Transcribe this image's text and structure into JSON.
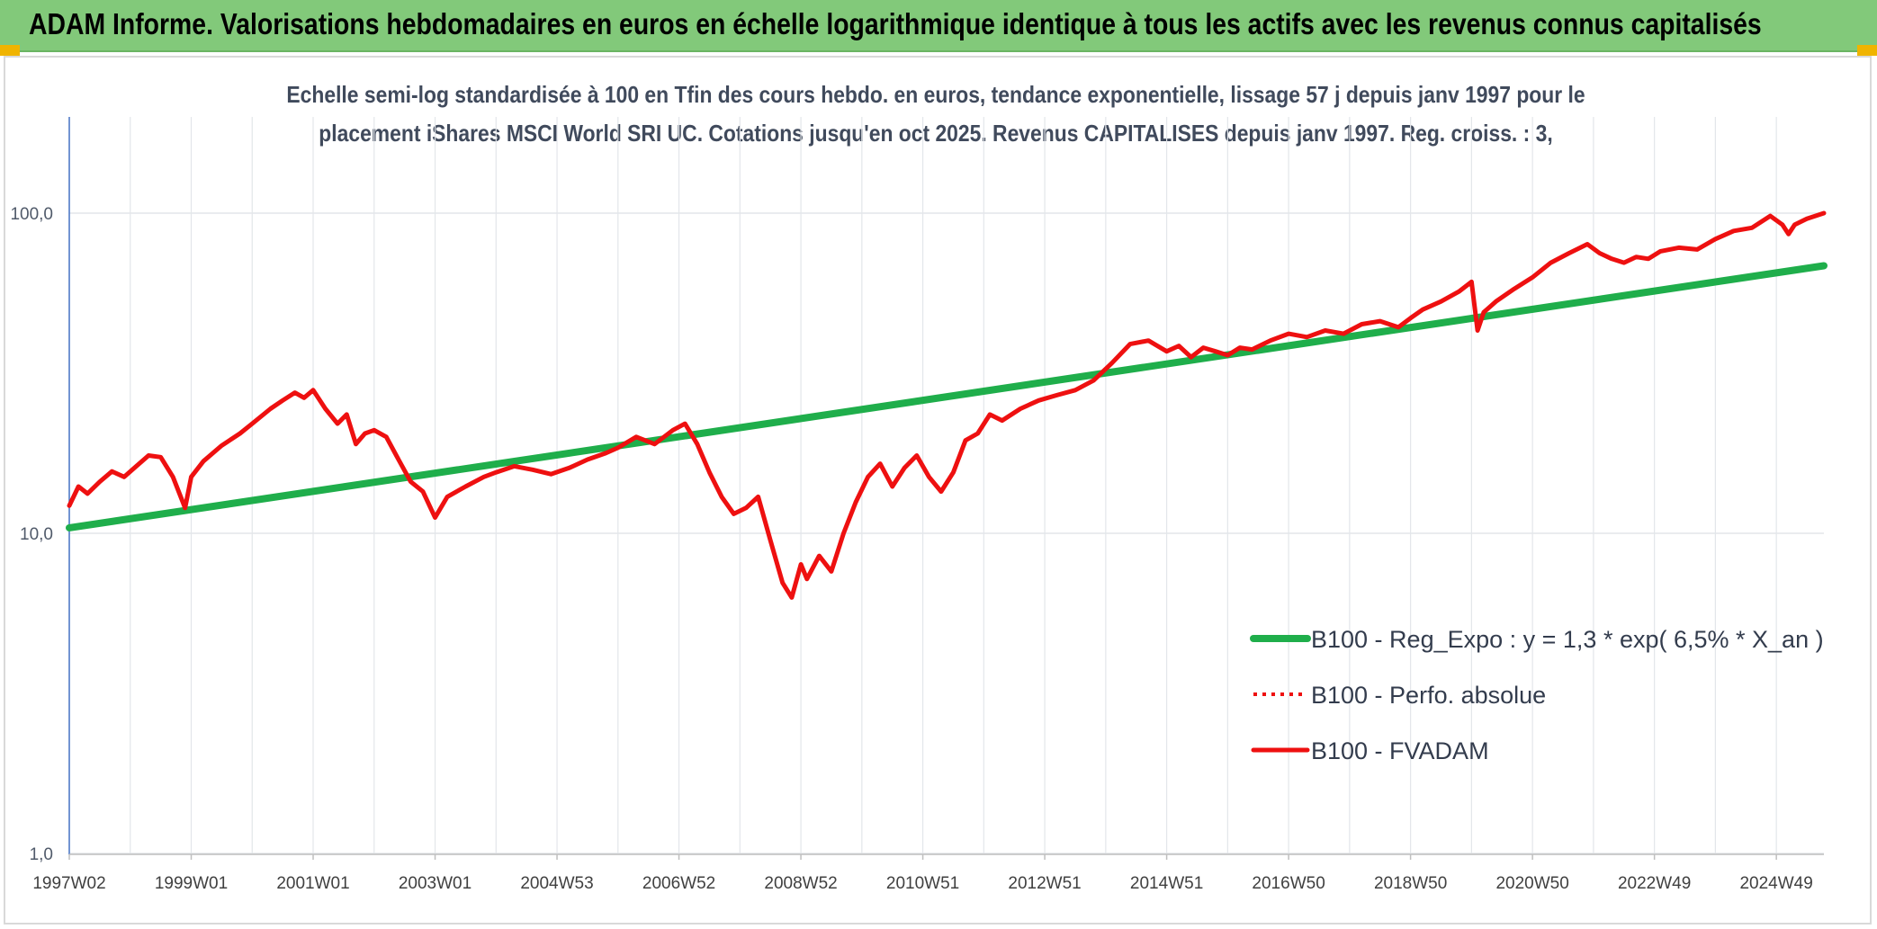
{
  "header": {
    "title": "ADAM Informe. Valorisations hebdomadaires en euros en échelle logarithmique identique à tous les actifs avec les revenus connus capitalisés"
  },
  "colors": {
    "banner": "#82c97a",
    "corner": "#f0b400",
    "trend": "#1fae4b",
    "price": "#ee1010",
    "grid": "#e3e6ea",
    "axis": "#4472c4"
  },
  "chart_data": {
    "type": "line",
    "subtitle_line1": "Echelle semi-log standardisée à 100 en Tfin des cours hebdo. en euros, tendance exponentielle, lissage 57 j depuis janv 1997 pour le",
    "subtitle_line2": "placement iShares MSCI World SRI UC. Cotations jusqu'en oct 2025. Revenus CAPITALISES depuis janv 1997. Reg. croiss. : 3,",
    "y_scale": "log",
    "ylim": [
      1,
      200
    ],
    "xlim": [
      1997.0,
      2025.78
    ],
    "y_ticks": [
      {
        "value": 100,
        "label": "100,0"
      },
      {
        "value": 10,
        "label": "10,0"
      },
      {
        "value": 1,
        "label": "1,0"
      }
    ],
    "x_ticks": [
      {
        "value": 1997.0,
        "label": "1997W02"
      },
      {
        "value": 1999.0,
        "label": "1999W01"
      },
      {
        "value": 2001.0,
        "label": "2001W01"
      },
      {
        "value": 2003.0,
        "label": "2003W01"
      },
      {
        "value": 2005.0,
        "label": "2004W53"
      },
      {
        "value": 2007.0,
        "label": "2006W52"
      },
      {
        "value": 2009.0,
        "label": "2008W52"
      },
      {
        "value": 2011.0,
        "label": "2010W51"
      },
      {
        "value": 2013.0,
        "label": "2012W51"
      },
      {
        "value": 2015.0,
        "label": "2014W51"
      },
      {
        "value": 2017.0,
        "label": "2016W50"
      },
      {
        "value": 2019.0,
        "label": "2018W50"
      },
      {
        "value": 2021.0,
        "label": "2020W50"
      },
      {
        "value": 2023.0,
        "label": "2022W49"
      },
      {
        "value": 2025.0,
        "label": "2024W49"
      }
    ],
    "grid": true,
    "legend_position": "bottom-right",
    "series": [
      {
        "name": "B100 - Reg_Expo : y = 1,3 * exp( 6,5% *  X_an )",
        "style": "solid-thick",
        "color": "#1fae4b",
        "x": [
          1997.0,
          2025.78
        ],
        "y": [
          10.4,
          68.5
        ]
      },
      {
        "name": "B100 - Perfo. absolue",
        "style": "dotted",
        "color": "#ee1010",
        "x": [],
        "y": []
      },
      {
        "name": "B100 - FVADAM",
        "style": "solid",
        "color": "#ee1010",
        "x": [
          1997.0,
          1997.15,
          1997.3,
          1997.5,
          1997.7,
          1997.9,
          1998.1,
          1998.3,
          1998.5,
          1998.7,
          1998.9,
          1999.0,
          1999.2,
          1999.5,
          1999.8,
          2000.0,
          2000.3,
          2000.5,
          2000.7,
          2000.85,
          2001.0,
          2001.2,
          2001.4,
          2001.55,
          2001.7,
          2001.85,
          2002.0,
          2002.2,
          2002.4,
          2002.6,
          2002.8,
          2003.0,
          2003.2,
          2003.5,
          2003.8,
          2004.0,
          2004.3,
          2004.6,
          2004.9,
          2005.2,
          2005.5,
          2005.8,
          2006.0,
          2006.3,
          2006.6,
          2006.9,
          2007.1,
          2007.3,
          2007.5,
          2007.7,
          2007.9,
          2008.1,
          2008.3,
          2008.5,
          2008.7,
          2008.85,
          2009.0,
          2009.1,
          2009.3,
          2009.5,
          2009.7,
          2009.9,
          2010.1,
          2010.3,
          2010.5,
          2010.7,
          2010.9,
          2011.1,
          2011.3,
          2011.5,
          2011.7,
          2011.9,
          2012.1,
          2012.3,
          2012.6,
          2012.9,
          2013.2,
          2013.5,
          2013.8,
          2014.1,
          2014.4,
          2014.7,
          2015.0,
          2015.2,
          2015.4,
          2015.6,
          2015.8,
          2016.0,
          2016.2,
          2016.4,
          2016.7,
          2017.0,
          2017.3,
          2017.6,
          2017.9,
          2018.2,
          2018.5,
          2018.8,
          2019.0,
          2019.2,
          2019.5,
          2019.8,
          2020.0,
          2020.1,
          2020.2,
          2020.4,
          2020.7,
          2021.0,
          2021.3,
          2021.6,
          2021.9,
          2022.1,
          2022.3,
          2022.5,
          2022.7,
          2022.9,
          2023.1,
          2023.4,
          2023.7,
          2024.0,
          2024.3,
          2024.6,
          2024.9,
          2025.1,
          2025.2,
          2025.3,
          2025.5,
          2025.78
        ],
        "y": [
          12.2,
          14.0,
          13.3,
          14.5,
          15.6,
          15.0,
          16.2,
          17.5,
          17.3,
          15.0,
          12.0,
          15.0,
          16.8,
          18.8,
          20.5,
          22.0,
          24.5,
          26.0,
          27.5,
          26.5,
          28.0,
          24.5,
          22.0,
          23.5,
          19.0,
          20.5,
          21.0,
          20.0,
          17.0,
          14.5,
          13.5,
          11.2,
          13.0,
          14.0,
          15.0,
          15.5,
          16.2,
          15.8,
          15.3,
          16.0,
          17.0,
          17.8,
          18.5,
          20.0,
          19.0,
          21.0,
          22.0,
          19.0,
          15.5,
          13.0,
          11.5,
          12.0,
          13.0,
          9.5,
          7.0,
          6.3,
          8.0,
          7.2,
          8.5,
          7.6,
          10.0,
          12.5,
          15.0,
          16.5,
          14.0,
          16.0,
          17.5,
          15.0,
          13.5,
          15.5,
          19.5,
          20.5,
          23.5,
          22.5,
          24.5,
          26.0,
          27.0,
          28.0,
          30.0,
          34.0,
          39.0,
          40.0,
          37.0,
          38.5,
          35.5,
          38.0,
          37.0,
          36.0,
          38.0,
          37.5,
          40.0,
          42.0,
          41.0,
          43.0,
          42.0,
          45.0,
          46.0,
          44.0,
          47.0,
          50.0,
          53.0,
          57.0,
          61.0,
          43.0,
          49.0,
          53.0,
          58.0,
          63.0,
          70.0,
          75.0,
          80.0,
          75.0,
          72.0,
          70.0,
          73.0,
          72.0,
          76.0,
          78.0,
          77.0,
          83.0,
          88.0,
          90.0,
          98.0,
          92.0,
          86.0,
          92.0,
          96.0,
          100.0
        ]
      }
    ]
  }
}
